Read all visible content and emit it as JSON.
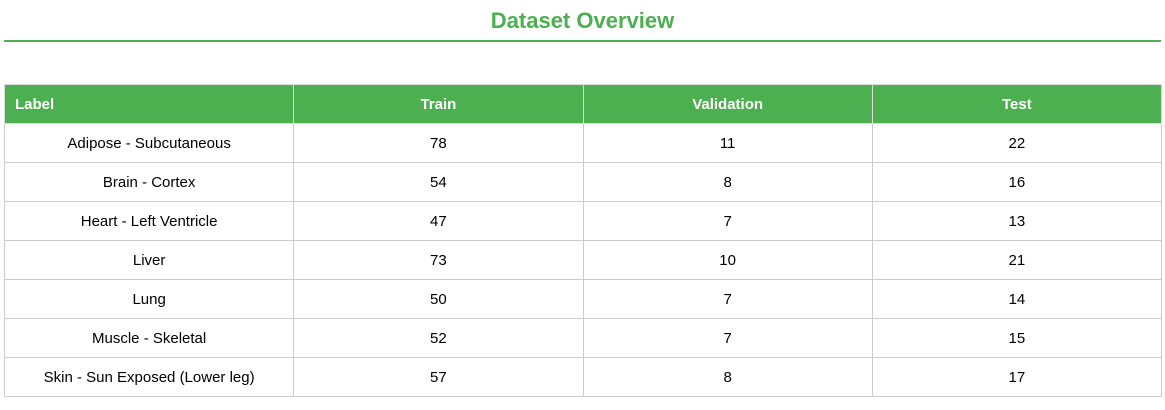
{
  "header": {
    "title": "Dataset Overview"
  },
  "table": {
    "columns": [
      "Label",
      "Train",
      "Validation",
      "Test"
    ],
    "rows": [
      [
        "Adipose - Subcutaneous",
        78,
        11,
        22
      ],
      [
        "Brain - Cortex",
        54,
        8,
        16
      ],
      [
        "Heart - Left Ventricle",
        47,
        7,
        13
      ],
      [
        "Liver",
        73,
        10,
        21
      ],
      [
        "Lung",
        50,
        7,
        14
      ],
      [
        "Muscle - Skeletal",
        52,
        7,
        15
      ],
      [
        "Skin - Sun Exposed (Lower leg)",
        57,
        8,
        17
      ]
    ]
  }
}
